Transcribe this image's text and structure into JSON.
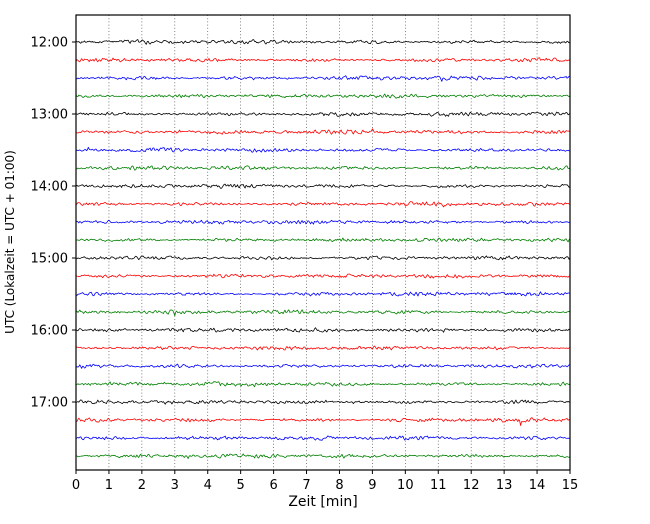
{
  "chart_data": {
    "type": "line",
    "subtype": "seismogram-helicorder",
    "title": "",
    "xlabel": "Zeit [min]",
    "ylabel": "UTC (Lokalzeit = UTC + 01:00)",
    "xlim": [
      0,
      15
    ],
    "x_tick_labels": [
      "0",
      "1",
      "2",
      "3",
      "4",
      "5",
      "6",
      "7",
      "8",
      "9",
      "10",
      "11",
      "12",
      "13",
      "14",
      "15"
    ],
    "hour_labels": [
      "12:00",
      "13:00",
      "14:00",
      "15:00",
      "16:00",
      "17:00"
    ],
    "time_range": [
      "12:00",
      "18:00"
    ],
    "minutes_per_line": 15,
    "lines_per_hour": 4,
    "grid": "dotted vertical gridlines at every minute",
    "legend": "none",
    "colors": [
      "#000000",
      "#ff0000",
      "#0000ff",
      "#008000"
    ],
    "traces": [
      {
        "start": "12:00",
        "color": "black"
      },
      {
        "start": "12:15",
        "color": "red"
      },
      {
        "start": "12:30",
        "color": "blue"
      },
      {
        "start": "12:45",
        "color": "green"
      },
      {
        "start": "13:00",
        "color": "black"
      },
      {
        "start": "13:15",
        "color": "red"
      },
      {
        "start": "13:30",
        "color": "blue"
      },
      {
        "start": "13:45",
        "color": "green"
      },
      {
        "start": "14:00",
        "color": "black"
      },
      {
        "start": "14:15",
        "color": "red"
      },
      {
        "start": "14:30",
        "color": "blue"
      },
      {
        "start": "14:45",
        "color": "green"
      },
      {
        "start": "15:00",
        "color": "black"
      },
      {
        "start": "15:15",
        "color": "red"
      },
      {
        "start": "15:30",
        "color": "blue"
      },
      {
        "start": "15:45",
        "color": "green"
      },
      {
        "start": "16:00",
        "color": "black"
      },
      {
        "start": "16:15",
        "color": "red"
      },
      {
        "start": "16:30",
        "color": "blue"
      },
      {
        "start": "16:45",
        "color": "green"
      },
      {
        "start": "17:00",
        "color": "black"
      },
      {
        "start": "17:15",
        "color": "red"
      },
      {
        "start": "17:30",
        "color": "blue"
      },
      {
        "start": "17:45",
        "color": "green"
      }
    ],
    "description": "Helicorder-style drum plot: 24 consecutive 15-minute traces of low-amplitude ambient seismic noise from 12:00 to 18:00 UTC; no distinct events; trace colors cycle black, red, blue, green."
  }
}
